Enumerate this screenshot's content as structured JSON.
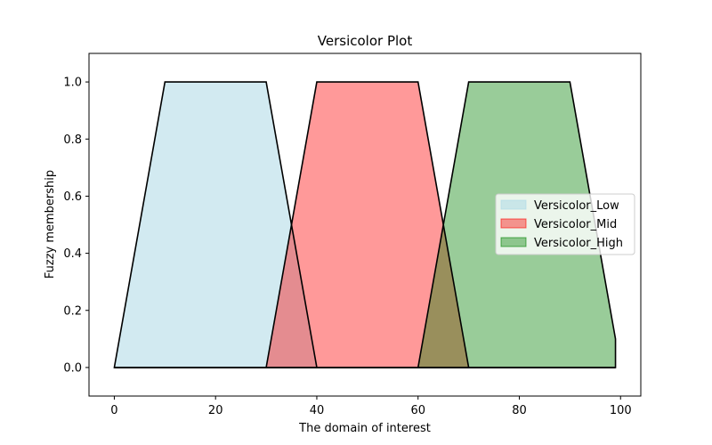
{
  "chart_data": {
    "type": "area",
    "title": "Versicolor Plot",
    "xlabel": "The domain of interest",
    "ylabel": "Fuzzy membership",
    "xlim": [
      -5,
      104
    ],
    "ylim": [
      -0.1,
      1.1
    ],
    "x_ticks": [
      0,
      20,
      40,
      60,
      80,
      100
    ],
    "x_tick_labels": [
      "0",
      "20",
      "40",
      "60",
      "80",
      "100"
    ],
    "y_ticks": [
      0.0,
      0.2,
      0.4,
      0.6,
      0.8,
      1.0
    ],
    "y_tick_labels": [
      "0.0",
      "0.2",
      "0.4",
      "0.6",
      "0.8",
      "1.0"
    ],
    "grid": false,
    "legend_position": "center-right",
    "series": [
      {
        "name": "Versicolor_Low",
        "color": "#add8e6",
        "fill_opacity": 0.55,
        "x": [
          0,
          10,
          30,
          40,
          99
        ],
        "y": [
          0,
          1,
          1,
          0,
          0
        ]
      },
      {
        "name": "Versicolor_Mid",
        "color": "#ff0000",
        "fill_opacity": 0.4,
        "x": [
          0,
          30,
          40,
          60,
          70,
          99
        ],
        "y": [
          0,
          0,
          1,
          1,
          0,
          0
        ]
      },
      {
        "name": "Versicolor_High",
        "color": "#008000",
        "fill_opacity": 0.4,
        "x": [
          0,
          60,
          70,
          90,
          99,
          99
        ],
        "y": [
          0,
          0,
          1,
          1,
          0.1,
          0
        ]
      }
    ]
  }
}
